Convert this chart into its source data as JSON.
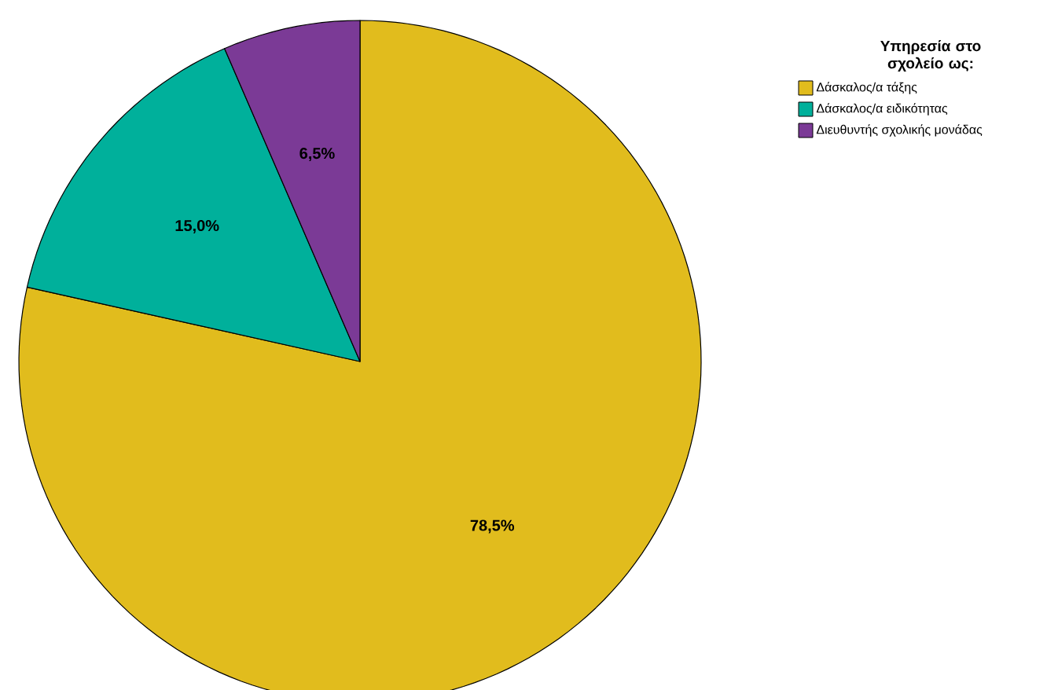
{
  "chart_data": {
    "type": "pie",
    "legend_title": "Υπηρεσία στο σχολείο ως:",
    "legend": "top right",
    "categories": [
      "Δάσκαλος/α τάξης",
      "Δάσκαλος/α ειδικότητας",
      "Διευθυντής σχολικής μονάδας"
    ],
    "values": [
      78.5,
      15.0,
      6.5
    ],
    "colors": [
      "#e1bc1d",
      "#00b09b",
      "#7b3a96"
    ],
    "value_labels": [
      "78,5%",
      "15,0%",
      "6,5%"
    ]
  }
}
